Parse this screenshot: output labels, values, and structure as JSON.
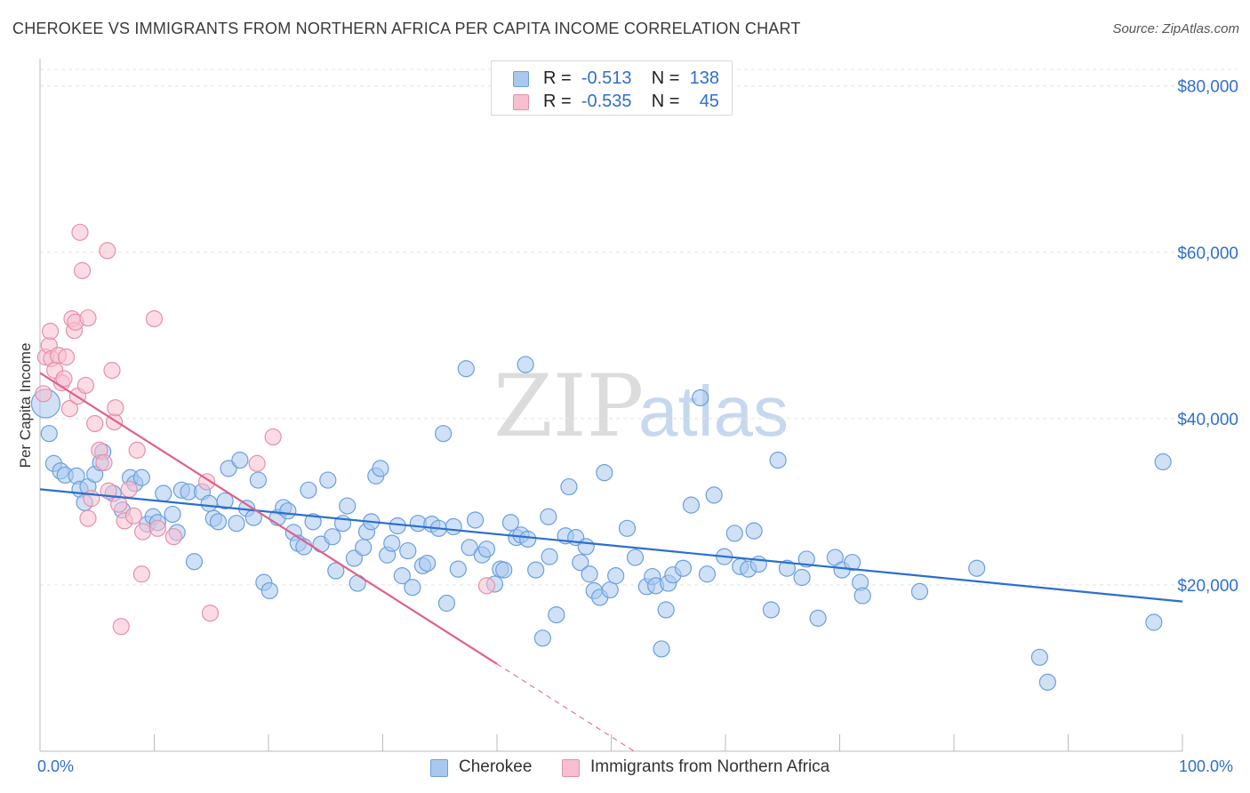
{
  "title": "CHEROKEE VS IMMIGRANTS FROM NORTHERN AFRICA PER CAPITA INCOME CORRELATION CHART",
  "source": "Source: ZipAtlas.com",
  "watermark": {
    "zip": "ZIP",
    "atlas": "atlas"
  },
  "legend": {
    "rows": [
      {
        "r_label": "R =",
        "r_value": "-0.513",
        "n_label": "N =",
        "n_value": "138",
        "color": "#a9c8ef",
        "border": "#6a9fe0"
      },
      {
        "r_label": "R =",
        "r_value": "-0.535",
        "n_label": "N =",
        "n_value": "45",
        "color": "#f7bfd0",
        "border": "#e78fab"
      }
    ]
  },
  "bottom_legend": [
    {
      "label": "Cherokee",
      "color": "#a9c8ef",
      "border": "#6a9fe0"
    },
    {
      "label": "Immigrants from Northern Africa",
      "color": "#f7bfd0",
      "border": "#e78fab"
    }
  ],
  "x_axis": {
    "min_label": "0.0%",
    "max_label": "100.0%"
  },
  "chart_data": {
    "type": "scatter",
    "ylabel": "Per Capita Income",
    "xlim": [
      0,
      100
    ],
    "ylim": [
      0,
      82000
    ],
    "y_ticks": [
      20000,
      40000,
      60000,
      80000
    ],
    "y_tick_labels": [
      "$20,000",
      "$40,000",
      "$60,000",
      "$80,000"
    ],
    "grid": true,
    "series": [
      {
        "name": "Cherokee",
        "color": "#6a9fe0",
        "fill": "#a9c8ef",
        "trend": {
          "x0": 0,
          "y0": 31500,
          "x1": 100,
          "y1": 18000
        },
        "points": [
          [
            0.5,
            41800
          ],
          [
            0.8,
            38200
          ],
          [
            1.2,
            34600
          ],
          [
            1.8,
            33700
          ],
          [
            2.2,
            33200
          ],
          [
            3.2,
            33100
          ],
          [
            3.5,
            31500
          ],
          [
            3.9,
            29900
          ],
          [
            4.2,
            31800
          ],
          [
            4.8,
            33300
          ],
          [
            5.5,
            36000
          ],
          [
            5.3,
            34700
          ],
          [
            6.4,
            31000
          ],
          [
            7.2,
            29000
          ],
          [
            7.9,
            32900
          ],
          [
            8.3,
            32200
          ],
          [
            8.9,
            32900
          ],
          [
            9.4,
            27300
          ],
          [
            9.9,
            28200
          ],
          [
            10.3,
            27500
          ],
          [
            10.8,
            31000
          ],
          [
            11.6,
            28500
          ],
          [
            12.0,
            26300
          ],
          [
            12.4,
            31400
          ],
          [
            13.0,
            31200
          ],
          [
            13.5,
            22800
          ],
          [
            14.2,
            31200
          ],
          [
            14.8,
            29800
          ],
          [
            15.2,
            28000
          ],
          [
            15.6,
            27600
          ],
          [
            16.2,
            30100
          ],
          [
            16.5,
            34000
          ],
          [
            17.2,
            27400
          ],
          [
            17.5,
            35000
          ],
          [
            18.1,
            29200
          ],
          [
            18.7,
            28100
          ],
          [
            19.1,
            32600
          ],
          [
            19.6,
            20300
          ],
          [
            20.1,
            19300
          ],
          [
            20.8,
            28100
          ],
          [
            21.3,
            29300
          ],
          [
            21.7,
            28900
          ],
          [
            22.2,
            26300
          ],
          [
            22.6,
            25000
          ],
          [
            23.1,
            24600
          ],
          [
            23.5,
            31400
          ],
          [
            23.9,
            27600
          ],
          [
            24.6,
            24900
          ],
          [
            25.2,
            32600
          ],
          [
            25.6,
            25800
          ],
          [
            25.9,
            21700
          ],
          [
            26.5,
            27400
          ],
          [
            26.9,
            29500
          ],
          [
            27.5,
            23200
          ],
          [
            27.8,
            20200
          ],
          [
            28.3,
            24500
          ],
          [
            28.6,
            26400
          ],
          [
            29.0,
            27600
          ],
          [
            29.4,
            33100
          ],
          [
            29.8,
            34000
          ],
          [
            30.4,
            23600
          ],
          [
            30.8,
            25000
          ],
          [
            31.3,
            27100
          ],
          [
            31.7,
            21100
          ],
          [
            32.2,
            24100
          ],
          [
            32.6,
            19700
          ],
          [
            33.1,
            27400
          ],
          [
            33.5,
            22300
          ],
          [
            33.9,
            22600
          ],
          [
            34.3,
            27300
          ],
          [
            34.9,
            26800
          ],
          [
            35.3,
            38200
          ],
          [
            35.6,
            17800
          ],
          [
            36.2,
            27000
          ],
          [
            36.6,
            21900
          ],
          [
            37.3,
            46000
          ],
          [
            37.6,
            24500
          ],
          [
            38.1,
            27800
          ],
          [
            38.7,
            23600
          ],
          [
            39.1,
            24300
          ],
          [
            39.8,
            20100
          ],
          [
            40.3,
            21900
          ],
          [
            40.6,
            21800
          ],
          [
            41.2,
            27500
          ],
          [
            41.7,
            25700
          ],
          [
            42.1,
            26000
          ],
          [
            42.5,
            46500
          ],
          [
            42.7,
            25500
          ],
          [
            43.4,
            21800
          ],
          [
            44.0,
            13600
          ],
          [
            44.5,
            28200
          ],
          [
            44.6,
            23400
          ],
          [
            45.2,
            16400
          ],
          [
            46.0,
            25900
          ],
          [
            46.3,
            31800
          ],
          [
            46.9,
            25700
          ],
          [
            47.3,
            22700
          ],
          [
            47.8,
            24600
          ],
          [
            48.1,
            21300
          ],
          [
            48.5,
            19300
          ],
          [
            49.0,
            18500
          ],
          [
            49.4,
            33500
          ],
          [
            49.9,
            19400
          ],
          [
            50.4,
            21100
          ],
          [
            51.4,
            26800
          ],
          [
            52.1,
            23300
          ],
          [
            53.1,
            19800
          ],
          [
            53.6,
            21000
          ],
          [
            53.9,
            19900
          ],
          [
            54.4,
            12300
          ],
          [
            54.8,
            17000
          ],
          [
            55.0,
            20200
          ],
          [
            55.4,
            21200
          ],
          [
            56.3,
            22000
          ],
          [
            57.0,
            29600
          ],
          [
            57.8,
            42500
          ],
          [
            58.4,
            21300
          ],
          [
            59.0,
            30800
          ],
          [
            59.9,
            23400
          ],
          [
            60.8,
            26200
          ],
          [
            61.3,
            22200
          ],
          [
            62.0,
            21900
          ],
          [
            62.5,
            26500
          ],
          [
            62.9,
            22500
          ],
          [
            64.0,
            17000
          ],
          [
            64.6,
            35000
          ],
          [
            65.4,
            22000
          ],
          [
            66.7,
            20900
          ],
          [
            67.1,
            23100
          ],
          [
            68.1,
            16000
          ],
          [
            69.6,
            23300
          ],
          [
            70.2,
            21800
          ],
          [
            71.1,
            22700
          ],
          [
            71.8,
            20300
          ],
          [
            72.0,
            18700
          ],
          [
            77.0,
            19200
          ],
          [
            82.0,
            22000
          ],
          [
            87.5,
            11300
          ],
          [
            88.2,
            8300
          ],
          [
            97.5,
            15500
          ],
          [
            98.3,
            34800
          ]
        ]
      },
      {
        "name": "Immigrants from Northern Africa",
        "color": "#e78fab",
        "fill": "#f7bfd0",
        "trend": {
          "x0": 0,
          "y0": 45500,
          "x1": 40,
          "y1": 10500,
          "dash_x1": 52,
          "dash_y1": 0
        },
        "points": [
          [
            0.3,
            43000
          ],
          [
            0.5,
            47400
          ],
          [
            0.8,
            48800
          ],
          [
            0.9,
            50500
          ],
          [
            1.0,
            47200
          ],
          [
            1.3,
            45800
          ],
          [
            1.6,
            47600
          ],
          [
            1.9,
            44300
          ],
          [
            2.1,
            44800
          ],
          [
            2.3,
            47400
          ],
          [
            2.6,
            41200
          ],
          [
            2.8,
            52000
          ],
          [
            3.0,
            50600
          ],
          [
            3.1,
            51600
          ],
          [
            3.3,
            42700
          ],
          [
            3.5,
            62400
          ],
          [
            3.7,
            57800
          ],
          [
            4.0,
            44000
          ],
          [
            4.2,
            52100
          ],
          [
            4.5,
            30400
          ],
          [
            4.8,
            39400
          ],
          [
            5.2,
            36200
          ],
          [
            5.6,
            34700
          ],
          [
            5.9,
            60200
          ],
          [
            6.0,
            31300
          ],
          [
            6.3,
            45800
          ],
          [
            6.5,
            39600
          ],
          [
            6.6,
            41300
          ],
          [
            6.9,
            29700
          ],
          [
            7.1,
            15000
          ],
          [
            7.4,
            27700
          ],
          [
            7.8,
            31500
          ],
          [
            8.2,
            28300
          ],
          [
            8.5,
            36200
          ],
          [
            8.9,
            21300
          ],
          [
            9.0,
            26400
          ],
          [
            10.0,
            52000
          ],
          [
            10.3,
            26800
          ],
          [
            11.7,
            25800
          ],
          [
            14.6,
            32400
          ],
          [
            14.9,
            16600
          ],
          [
            19.0,
            34600
          ],
          [
            20.4,
            37800
          ],
          [
            39.1,
            19900
          ],
          [
            4.2,
            28000
          ]
        ]
      }
    ]
  }
}
